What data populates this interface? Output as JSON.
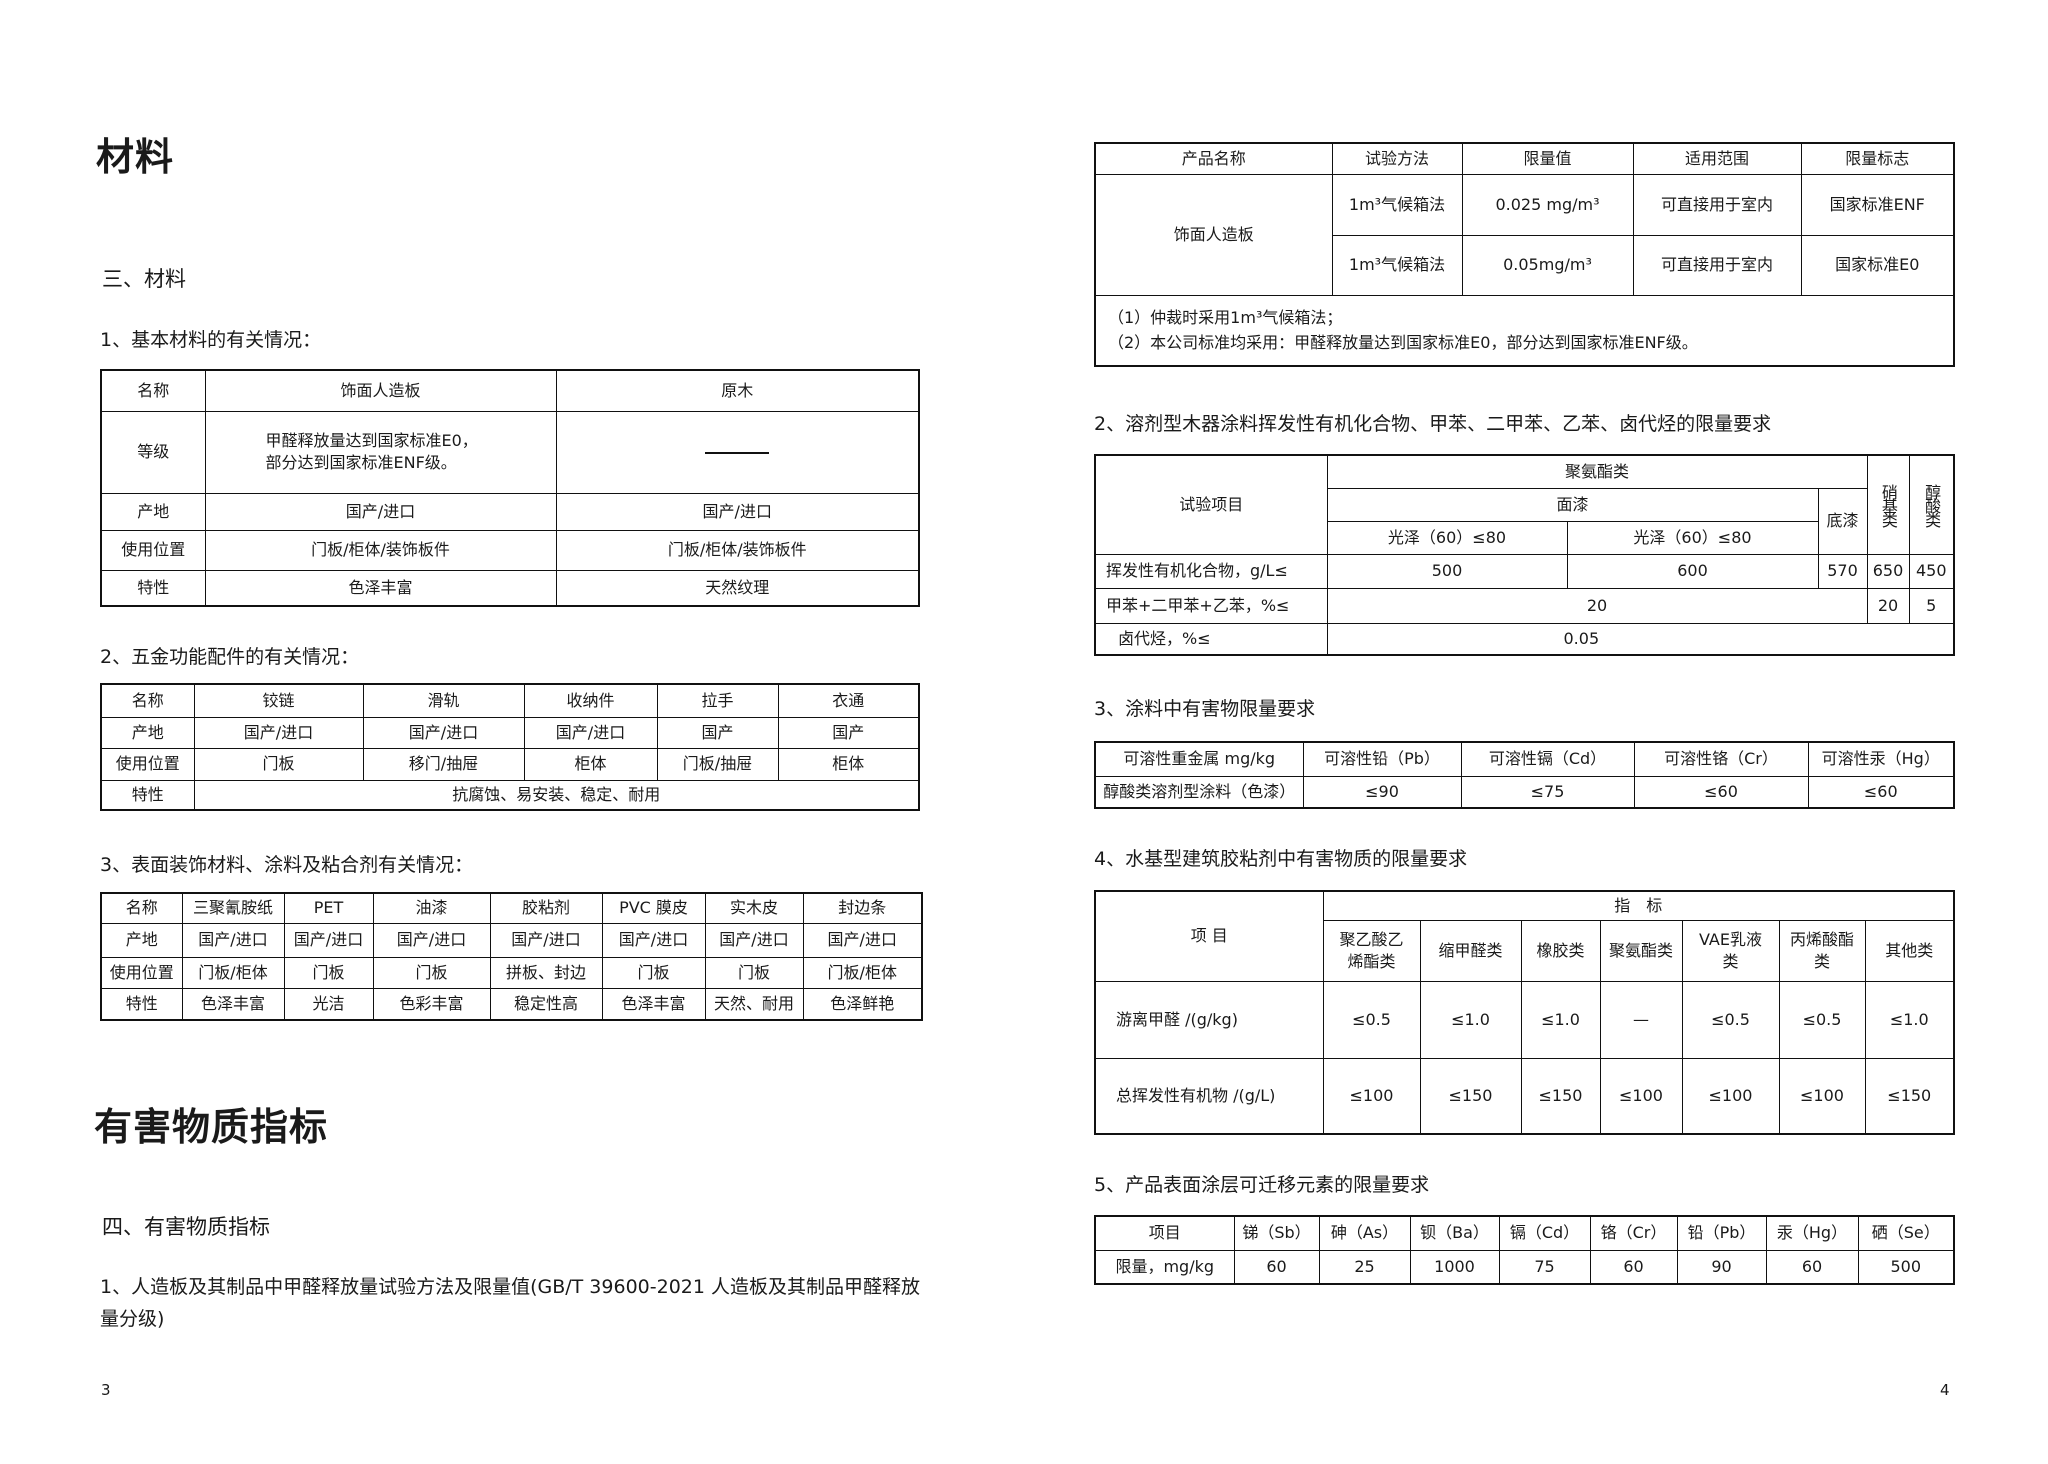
{
  "left": {
    "title": "材料",
    "section": "三、材料",
    "h1": "1、基本材料的有关情况：",
    "t1": {
      "header": [
        "名称",
        "饰面人造板",
        "原木"
      ],
      "grade_label": "等级",
      "grade_line1": "甲醛释放量达到国家标准E0，",
      "grade_line2": "部分达到国家标准ENF级。",
      "rows": [
        [
          "产地",
          "国产/进口",
          "国产/进口"
        ],
        [
          "使用位置",
          "门板/柜体/装饰板件",
          "门板/柜体/装饰板件"
        ],
        [
          "特性",
          "色泽丰富",
          "天然纹理"
        ]
      ]
    },
    "h2": "2、五金功能配件的有关情况：",
    "t2": {
      "rows": [
        [
          "名称",
          "铰链",
          "滑轨",
          "收纳件",
          "拉手",
          "衣通"
        ],
        [
          "产地",
          "国产/进口",
          "国产/进口",
          "国产/进口",
          "国产",
          "国产"
        ],
        [
          "使用位置",
          "门板",
          "移门/抽屉",
          "柜体",
          "门板/抽屉",
          "柜体"
        ]
      ],
      "feature_label": "特性",
      "feature": "抗腐蚀、易安装、稳定、耐用"
    },
    "h3": "3、表面装饰材料、涂料及粘合剂有关情况：",
    "t3": {
      "rows": [
        [
          "名称",
          "三聚氰胺纸",
          "PET",
          "油漆",
          "胶粘剂",
          "PVC 膜皮",
          "实木皮",
          "封边条"
        ],
        [
          "产地",
          "国产/进口",
          "国产/进口",
          "国产/进口",
          "国产/进口",
          "国产/进口",
          "国产/进口",
          "国产/进口"
        ],
        [
          "使用位置",
          "门板/柜体",
          "门板",
          "门板",
          "拼板、封边",
          "门板",
          "门板",
          "门板/柜体"
        ],
        [
          "特性",
          "色泽丰富",
          "光洁",
          "色彩丰富",
          "稳定性高",
          "色泽丰富",
          "天然、耐用",
          "色泽鲜艳"
        ]
      ]
    },
    "title2": "有害物质指标",
    "section2": "四、有害物质指标",
    "h4_line1": "1、人造板及其制品中甲醛释放量试验方法及限量值(GB/T 39600-2021  人造板及其制品甲醛释放",
    "h4_line2": "量分级)",
    "page": "3"
  },
  "right": {
    "r1": {
      "header": [
        "产品名称",
        "试验方法",
        "限量值",
        "适用范围",
        "限量标志"
      ],
      "product": "饰面人造板",
      "rows": [
        [
          "1m³气候箱法",
          "0.025 mg/m³",
          "可直接用于室内",
          "国家标准ENF"
        ],
        [
          "1m³气候箱法",
          "0.05mg/m³",
          "可直接用于室内",
          "国家标准E0"
        ]
      ],
      "note1": "（1）仲裁时采用1m³气候箱法；",
      "note2": "（2）本公司标准均采用：甲醛释放量达到国家标准E0，部分达到国家标准ENF级。"
    },
    "h2": "2、溶剂型木器涂料挥发性有机化合物、甲苯、二甲苯、乙苯、卤代烃的限量要求",
    "r2": {
      "item": "试验项目",
      "pu": "聚氨酯类",
      "nitro": "硝基类",
      "alkyd": "醇酸类",
      "topcoat": "面漆",
      "primer": "底漆",
      "gloss1": "光泽（60）≤80",
      "gloss2": "光泽（60）≤80",
      "voc": [
        "挥发性有机化合物，g/L≤",
        "500",
        "600",
        "570",
        "650",
        "450"
      ],
      "benzene": [
        "甲苯+二甲苯+乙苯，%≤",
        "20",
        "20",
        "5"
      ],
      "halo": [
        "卤代烃，%≤",
        "0.05"
      ]
    },
    "h3": "3、涂料中有害物限量要求",
    "r3": {
      "rows": [
        [
          "可溶性重金属 mg/kg",
          "可溶性铅（Pb）",
          "可溶性镉（Cd）",
          "可溶性铬（Cr）",
          "可溶性汞（Hg）"
        ],
        [
          "醇酸类溶剂型涂料（色漆）",
          "≤90",
          "≤75",
          "≤60",
          "≤60"
        ]
      ]
    },
    "h4": "4、水基型建筑胶粘剂中有害物质的限量要求",
    "r4": {
      "item": "项 目",
      "index": "指　标",
      "types": [
        "聚乙酸乙烯酯类",
        "缩甲醛类",
        "橡胶类",
        "聚氨酯类",
        "VAE乳液类",
        "丙烯酸酯类",
        "其他类"
      ],
      "rows": [
        [
          "游离甲醛 /(g/kg)",
          "≤0.5",
          "≤1.0",
          "≤1.0",
          "—",
          "≤0.5",
          "≤0.5",
          "≤1.0"
        ],
        [
          "总挥发性有机物 /(g/L)",
          "≤100",
          "≤150",
          "≤150",
          "≤100",
          "≤100",
          "≤100",
          "≤150"
        ]
      ]
    },
    "h5": "5、产品表面涂层可迁移元素的限量要求",
    "r5": {
      "rows": [
        [
          "项目",
          "锑（Sb）",
          "砷（As）",
          "钡（Ba）",
          "镉（Cd）",
          "铬（Cr）",
          "铅（Pb）",
          "汞（Hg）",
          "硒（Se）"
        ],
        [
          "限量，mg/kg",
          "60",
          "25",
          "1000",
          "75",
          "60",
          "90",
          "60",
          "500"
        ]
      ]
    },
    "page": "4"
  }
}
